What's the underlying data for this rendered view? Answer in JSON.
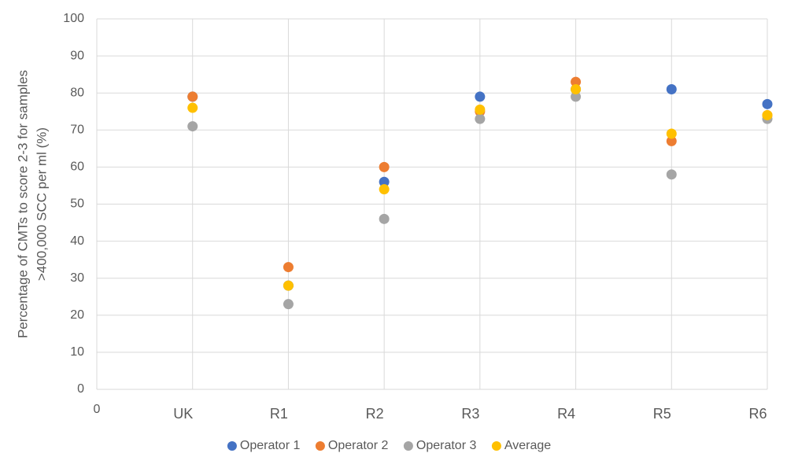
{
  "chart_data": {
    "type": "scatter",
    "ylabel": [
      "Percentage of CMTs to score 2-3 for samples",
      ">400,000 SCC per ml (%)"
    ],
    "xlim": [
      0,
      7
    ],
    "xticks": [
      0,
      {
        "value": 1,
        "label": "UK"
      },
      {
        "value": 2,
        "label": "R1"
      },
      {
        "value": 3,
        "label": "R2"
      },
      {
        "value": 4,
        "label": "R3"
      },
      {
        "value": 5,
        "label": "R4"
      },
      {
        "value": 6,
        "label": "R5"
      },
      {
        "value": 7,
        "label": "R6"
      }
    ],
    "ylim": [
      0,
      100
    ],
    "yticks": [
      0,
      10,
      20,
      30,
      40,
      50,
      60,
      70,
      80,
      90,
      100
    ],
    "grid": true,
    "legend": "bottom",
    "x": [
      1,
      2,
      3,
      4,
      5,
      6,
      7
    ],
    "series": [
      {
        "name": "Operator 1",
        "color": "#4472c4",
        "values": [
          79,
          28,
          56,
          79,
          81,
          81,
          77
        ]
      },
      {
        "name": "Operator 2",
        "color": "#ed7d31",
        "values": [
          79,
          33,
          60,
          75,
          83,
          67,
          74
        ]
      },
      {
        "name": "Operator 3",
        "color": "#a5a5a5",
        "values": [
          71,
          23,
          46,
          73,
          79,
          58,
          73
        ]
      },
      {
        "name": "Average",
        "color": "#ffc000",
        "values": [
          76,
          28,
          54,
          75.5,
          81,
          69,
          74
        ]
      }
    ]
  }
}
